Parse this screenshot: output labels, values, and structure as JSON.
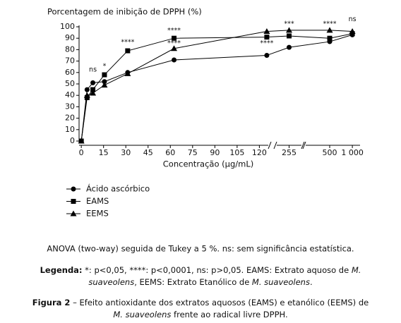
{
  "chart_data": {
    "type": "line",
    "title": "Porcentagem de inibição de DPPH (%)",
    "x_label": "Concentração (µg/mL)",
    "x": [
      0,
      3.9,
      7.8,
      15.6,
      31.25,
      62.5,
      125,
      255,
      500,
      1000
    ],
    "x_segments": [
      {
        "xlim": [
          -1.5,
          126
        ],
        "xticks": [
          0,
          15,
          30,
          45,
          60,
          75,
          90,
          105,
          120
        ]
      },
      {
        "xlim": [
          220,
          290
        ],
        "xticks": [
          255
        ]
      },
      {
        "xlim": [
          -30,
          1170
        ],
        "xticks": [
          500,
          {
            "value": 1000,
            "label": "1 000"
          }
        ]
      }
    ],
    "ylim": [
      0,
      100
    ],
    "yticks": [
      0,
      10,
      20,
      30,
      40,
      50,
      60,
      70,
      80,
      90,
      100
    ],
    "series": [
      {
        "name": "Ácido ascórbico",
        "color": "#000000",
        "marker": "circle",
        "values": [
          0,
          45,
          51,
          52,
          60,
          71,
          75,
          82,
          87,
          93
        ]
      },
      {
        "name": "EAMS",
        "color": "#000000",
        "marker": "square",
        "values": [
          0,
          38,
          45,
          58,
          79,
          90,
          91,
          92,
          90,
          94
        ]
      },
      {
        "name": "EEMS",
        "color": "#000000",
        "marker": "triangle",
        "values": [
          0,
          40,
          42,
          49,
          59,
          81,
          96,
          97,
          97,
          96
        ]
      }
    ],
    "annotations": [
      {
        "text": "ns",
        "x": 7.8,
        "y": 60
      },
      {
        "text": "*",
        "x": 15.6,
        "y": 63
      },
      {
        "text": "****",
        "x": 31.25,
        "y": 84
      },
      {
        "text": "****",
        "x": 62.5,
        "y": 94
      },
      {
        "text": "****",
        "x": 62.5,
        "y": 83
      },
      {
        "text": "****",
        "x": 125,
        "y": 83
      },
      {
        "text": "***",
        "x": 255,
        "y": 100
      },
      {
        "text": "****",
        "x": 500,
        "y": 100
      },
      {
        "text": "ns",
        "x": 1000,
        "y": 104
      }
    ]
  },
  "notes": {
    "anova": "ANOVA (two-way) seguida de Tukey a 5 %. ns: sem significância estatística.",
    "legend_head": "Legenda:",
    "legend_1": " *: p<0,05, ****: p<0,0001, ns: p>0,05. EAMS: Extrato aquoso de ",
    "legend_species_1": "M.",
    "legend_species_2": "suaveolens",
    "legend_2": ", EEMS: Extrato Etanólico de ",
    "legend_species_3": "M. suaveolens",
    "legend_end": ".",
    "figure_head": "Figura 2",
    "figure_1": " – Efeito antioxidante dos extratos aquosos (EAMS) e etanólico (EEMS) de",
    "figure_species": "M. suaveolens",
    "figure_2": " frente ao radical livre DPPH."
  }
}
